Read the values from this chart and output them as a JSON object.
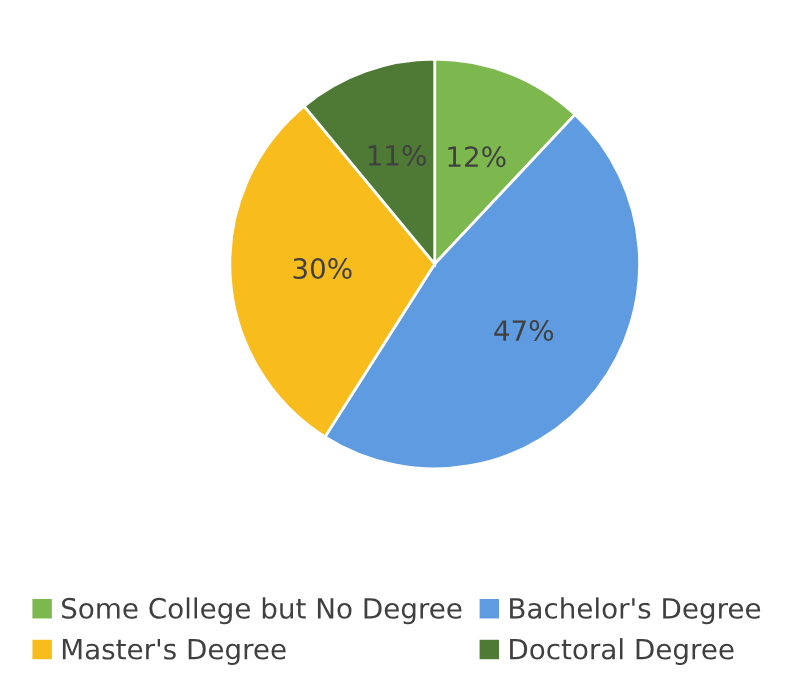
{
  "chart_data": {
    "type": "pie",
    "categories": [
      "Some College but No Degree",
      "Bachelor's Degree",
      "Master's Degree",
      "Doctoral Degree"
    ],
    "values": [
      12,
      47,
      30,
      11
    ],
    "colors": [
      "#7cb84e",
      "#5f9be0",
      "#f8bc1c",
      "#4e7a36"
    ],
    "value_labels": [
      "12%",
      "47%",
      "30%",
      "11%"
    ],
    "legend": "bottom"
  }
}
